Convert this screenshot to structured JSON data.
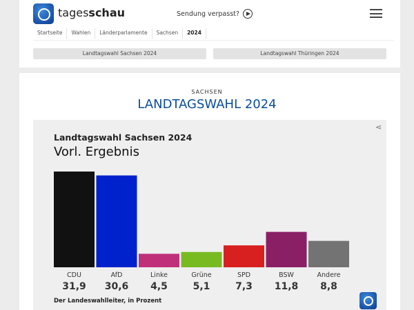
{
  "header": {
    "brand_light": "tages",
    "brand_bold": "schau",
    "missed": "Sendung verpasst?"
  },
  "breadcrumb": [
    "Startseite",
    "Wahlen",
    "Länderparlamente",
    "Sachsen",
    "2024"
  ],
  "tabs": [
    "Landtagswahl Sachsen 2024",
    "Landtagswahl Thüringen 2024"
  ],
  "section": {
    "kicker": "SACHSEN",
    "title": "LANDTAGSWAHL 2024"
  },
  "chart_data": {
    "type": "bar",
    "title": "Landtagswahl Sachsen 2024",
    "subtitle": "Vorl. Ergebnis",
    "source": "Der Landeswahlleiter, in Prozent",
    "categories": [
      "CDU",
      "AfD",
      "Linke",
      "Grüne",
      "SPD",
      "BSW",
      "Andere"
    ],
    "values": [
      31.9,
      30.6,
      4.5,
      5.1,
      7.3,
      11.8,
      8.8
    ],
    "value_labels": [
      "31,9",
      "30,6",
      "4,5",
      "5,1",
      "7,3",
      "11,8",
      "8,8"
    ],
    "colors": [
      "#111111",
      "#0022cc",
      "#c0307a",
      "#78bb20",
      "#d82020",
      "#8a1f66",
      "#737373"
    ]
  }
}
